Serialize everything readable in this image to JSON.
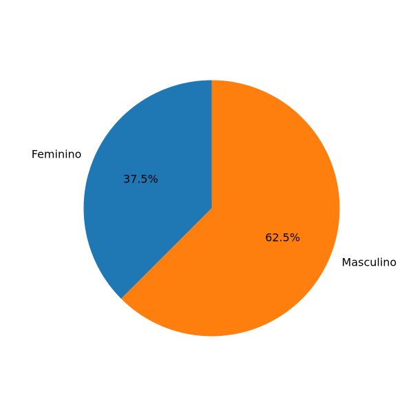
{
  "chart_data": {
    "type": "pie",
    "categories": [
      "Feminino",
      "Masculino"
    ],
    "values": [
      37.5,
      62.5
    ],
    "percent_labels": [
      "37.5%",
      "62.5%"
    ],
    "colors": [
      "#1f77b4",
      "#ff7f0e"
    ],
    "start_angle_deg": 90,
    "direction": "counterclockwise",
    "legend": "none"
  }
}
